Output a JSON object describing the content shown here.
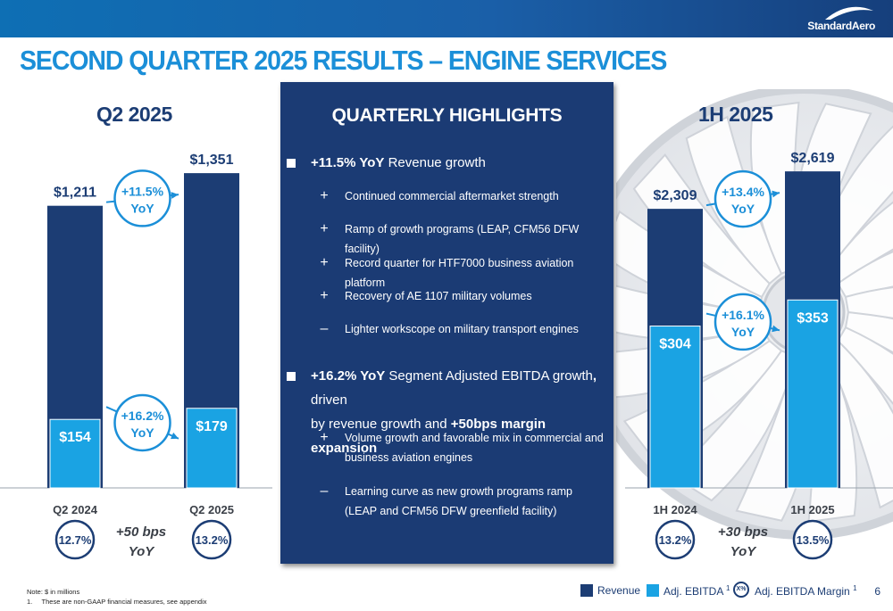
{
  "header": {
    "title": "SECOND QUARTER 2025 RESULTS – ENGINE SERVICES",
    "logo_text": "StandardAero",
    "colors": {
      "revenue": "#1c3d74",
      "ebitda": "#1aa3e3",
      "title": "#1b8fd8",
      "bar": "#1a5fa8"
    }
  },
  "chart_data": [
    {
      "type": "bar",
      "title": "Q2 2025",
      "categories": [
        "Q2 2024",
        "Q2 2025"
      ],
      "series": [
        {
          "name": "Revenue",
          "values": [
            1211,
            1351
          ],
          "labels": [
            "$1,211",
            "$1,351"
          ]
        },
        {
          "name": "Adj. EBITDA",
          "values": [
            154,
            179
          ],
          "labels": [
            "$154",
            "$179"
          ]
        }
      ],
      "margins": [
        "12.7%",
        "13.2%"
      ],
      "margin_change": [
        "+50 bps",
        "YoY"
      ],
      "revenue_growth": [
        "+11.5%",
        "YoY"
      ],
      "ebitda_growth": [
        "+16.2%",
        "YoY"
      ]
    },
    {
      "type": "bar",
      "title": "1H 2025",
      "categories": [
        "1H 2024",
        "1H 2025"
      ],
      "series": [
        {
          "name": "Revenue",
          "values": [
            2309,
            2619
          ],
          "labels": [
            "$2,309",
            "$2,619"
          ]
        },
        {
          "name": "Adj. EBITDA",
          "values": [
            304,
            353
          ],
          "labels": [
            "$304",
            "$353"
          ]
        }
      ],
      "margins": [
        "13.2%",
        "13.5%"
      ],
      "margin_change": [
        "+30 bps",
        "YoY"
      ],
      "revenue_growth": [
        "+13.4%",
        "YoY"
      ],
      "ebitda_growth": [
        "+16.1%",
        "YoY"
      ]
    }
  ],
  "highlights": {
    "title": "QUARTERLY HIGHLIGHTS",
    "b1": {
      "bold": "+11.5% YoY",
      "rest": " Revenue growth"
    },
    "b1_items": [
      {
        "mark": "+",
        "text": "Continued commercial aftermarket strength"
      },
      {
        "mark": "+",
        "text": "Ramp of growth programs (LEAP, CFM56 DFW facility)"
      },
      {
        "mark": "+",
        "text": "Record quarter for HTF7000 business aviation platform"
      },
      {
        "mark": "+",
        "text": "Recovery of AE 1107 military volumes"
      },
      {
        "mark": "–",
        "text": "Lighter workscope on military transport engines"
      }
    ],
    "b2": {
      "bold": "+16.2% YoY",
      "rest1": " Segment Adjusted EBITDA growth",
      "comma": ",",
      "rest2": " driven",
      "line2a": "by revenue growth and ",
      "line2b": "+50bps margin expansion"
    },
    "b2_items": [
      {
        "mark": "+",
        "text": "Volume growth and favorable mix in commercial and business aviation engines"
      },
      {
        "mark": "–",
        "text": "Learning curve as new growth programs ramp (LEAP and CFM56 DFW greenfield facility)"
      }
    ]
  },
  "legend": {
    "revenue": "Revenue",
    "ebitda": "Adj. EBITDA",
    "ebitda_sup": "1",
    "margin_badge": "X%",
    "margin": "Adj. EBITDA Margin",
    "margin_sup": "1"
  },
  "notes": {
    "line1": "Note: $ in millions",
    "line2": "1.     These are non-GAAP financial measures, see appendix"
  },
  "page_number": "6"
}
